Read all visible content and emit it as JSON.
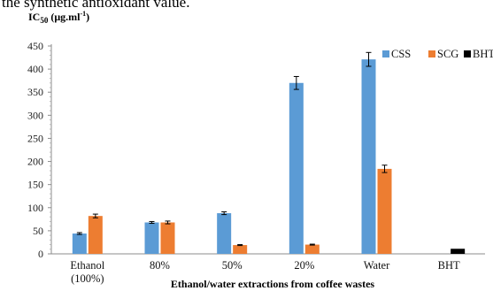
{
  "page": {
    "top_text": "the synthetic antioxidant value."
  },
  "chart_data": {
    "type": "bar",
    "title": "",
    "ylabel_main": "IC",
    "ylabel_sub": "50",
    "ylabel_rest": " (μg.ml",
    "ylabel_sup": "-1",
    "ylabel_end": ")",
    "xlabel": "Ethanol/water extractions from coffee wastes",
    "ylim": [
      0,
      450
    ],
    "yticks": [
      0,
      50,
      100,
      150,
      200,
      250,
      300,
      350,
      400,
      450
    ],
    "categories": [
      [
        "Ethanol",
        "(100%)"
      ],
      [
        "80%"
      ],
      [
        "50%"
      ],
      [
        "20%"
      ],
      [
        "Water"
      ],
      [
        "BHT"
      ]
    ],
    "series": [
      {
        "name": "CSS",
        "color": "#5B9BD5",
        "values": [
          44,
          68,
          88,
          370,
          421,
          null
        ],
        "errors": [
          2,
          2,
          3,
          14,
          15,
          null
        ]
      },
      {
        "name": "SCG",
        "color": "#ED7D31",
        "values": [
          82,
          68,
          19,
          20,
          184,
          null
        ],
        "errors": [
          4,
          3,
          1,
          1,
          8,
          null
        ]
      },
      {
        "name": "BHT",
        "color": "#000000",
        "values": [
          null,
          null,
          null,
          null,
          null,
          11
        ],
        "errors": [
          null,
          null,
          null,
          null,
          null,
          0
        ]
      }
    ],
    "legend_position": "top-right",
    "grid": false
  }
}
